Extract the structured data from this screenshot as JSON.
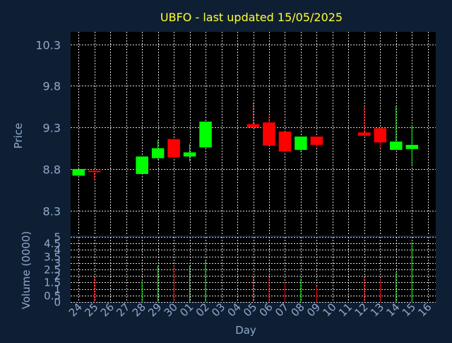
{
  "chart_data": {
    "type": "candlestick",
    "title": "UBFO - last updated 15/05/2025",
    "xlabel": "Day",
    "price_panel": {
      "ylabel": "Price",
      "ylim": [
        8.0,
        10.45
      ],
      "yticks": [
        "8.3",
        "8.8",
        "9.3",
        "9.8",
        "10.3"
      ]
    },
    "volume_panel": {
      "ylabel": "Volume (0000)",
      "ylim": [
        0,
        5
      ],
      "yticks": [
        "0",
        "0.5",
        "1",
        "1.5",
        "2",
        "2.5",
        "3",
        "3.5",
        "4",
        "4.5",
        "5"
      ],
      "ytick_labels": [
        "0",
        "0.5",
        "1",
        "1.5",
        "2",
        "2.5",
        "3",
        "3.5",
        "4",
        "4.5",
        "5"
      ]
    },
    "x_labels": [
      "24",
      "25",
      "26",
      "27",
      "28",
      "29",
      "30",
      "01",
      "02",
      "03",
      "04",
      "05",
      "06",
      "07",
      "08",
      "09",
      "10",
      "11",
      "12",
      "13",
      "14",
      "15",
      "16"
    ],
    "candles": [
      {
        "day": "24",
        "open": 8.72,
        "close": 8.8,
        "high": 8.8,
        "low": 8.72,
        "volume": 0,
        "direction": "up"
      },
      {
        "day": "25",
        "open": 8.78,
        "close": 8.77,
        "high": 8.78,
        "low": 8.67,
        "volume": 1.9,
        "direction": "down"
      },
      {
        "day": "28",
        "open": 8.74,
        "close": 8.95,
        "high": 8.95,
        "low": 8.74,
        "volume": 1.6,
        "direction": "up"
      },
      {
        "day": "29",
        "open": 8.93,
        "close": 9.05,
        "high": 9.15,
        "low": 8.91,
        "volume": 2.8,
        "direction": "up"
      },
      {
        "day": "30",
        "open": 9.16,
        "close": 8.94,
        "high": 9.16,
        "low": 8.94,
        "volume": 2.8,
        "direction": "down"
      },
      {
        "day": "01",
        "open": 8.95,
        "close": 9.0,
        "high": 9.1,
        "low": 8.89,
        "volume": 2.8,
        "direction": "up"
      },
      {
        "day": "02",
        "open": 9.06,
        "close": 9.37,
        "high": 9.37,
        "low": 9.06,
        "volume": 3.2,
        "direction": "up"
      },
      {
        "day": "05",
        "open": 9.34,
        "close": 9.3,
        "high": 9.6,
        "low": 9.3,
        "volume": 2.0,
        "direction": "down"
      },
      {
        "day": "06",
        "open": 9.36,
        "close": 9.08,
        "high": 9.44,
        "low": 9.08,
        "volume": 1.9,
        "direction": "down"
      },
      {
        "day": "07",
        "open": 9.25,
        "close": 9.01,
        "high": 9.25,
        "low": 9.0,
        "volume": 1.5,
        "direction": "down"
      },
      {
        "day": "08",
        "open": 9.03,
        "close": 9.19,
        "high": 9.19,
        "low": 9.0,
        "volume": 1.8,
        "direction": "up"
      },
      {
        "day": "09",
        "open": 9.19,
        "close": 9.09,
        "high": 9.19,
        "low": 9.06,
        "volume": 1.2,
        "direction": "down"
      },
      {
        "day": "12",
        "open": 9.24,
        "close": 9.2,
        "high": 9.55,
        "low": 9.2,
        "volume": 1.9,
        "direction": "down"
      },
      {
        "day": "13",
        "open": 9.29,
        "close": 9.12,
        "high": 9.29,
        "low": 9.05,
        "volume": 1.8,
        "direction": "down"
      },
      {
        "day": "14",
        "open": 9.03,
        "close": 9.13,
        "high": 9.56,
        "low": 9.03,
        "volume": 2.3,
        "direction": "up"
      },
      {
        "day": "15",
        "open": 9.04,
        "close": 9.09,
        "high": 9.33,
        "low": 8.85,
        "volume": 4.6,
        "direction": "up"
      }
    ],
    "colors": {
      "background": "#0f1f33",
      "plot_background": "#000000",
      "grid": "#ffffff",
      "up": "#00ff00",
      "down": "#ff0000",
      "text": "#8fa9cc",
      "title": "#ffff33"
    },
    "grid": true
  }
}
